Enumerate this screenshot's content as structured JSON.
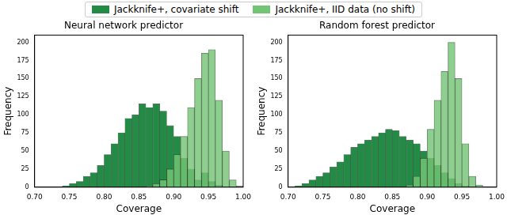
{
  "chart_data": [
    {
      "type": "histogram",
      "title": "Neural network predictor",
      "x_label": "Coverage",
      "y_label": "Frequency",
      "legend": "top",
      "grid": false,
      "bins": [
        0.7,
        0.71,
        0.72,
        0.73,
        0.74,
        0.75,
        0.76,
        0.77,
        0.78,
        0.79,
        0.8,
        0.81,
        0.82,
        0.83,
        0.84,
        0.85,
        0.86,
        0.87,
        0.88,
        0.89,
        0.9,
        0.91,
        0.92,
        0.93,
        0.94,
        0.95,
        0.96,
        0.97,
        0.98,
        0.99,
        1.0
      ],
      "series": [
        {
          "name": "Jackknife+, covariate shift",
          "color": "#238b45",
          "values": [
            0,
            0,
            0,
            0,
            2,
            5,
            8,
            15,
            20,
            30,
            45,
            60,
            75,
            95,
            100,
            115,
            110,
            115,
            105,
            85,
            70,
            40,
            25,
            10,
            20,
            8,
            3,
            1,
            0,
            0
          ]
        },
        {
          "name": "Jackknife+, IID data (no shift)",
          "color": "#74c476",
          "values": [
            0,
            0,
            0,
            0,
            0,
            0,
            0,
            0,
            0,
            0,
            0,
            0,
            0,
            0,
            0,
            0,
            2,
            5,
            10,
            25,
            45,
            70,
            110,
            150,
            185,
            190,
            120,
            50,
            10,
            2
          ]
        }
      ],
      "xlim": [
        0.7,
        1.0
      ],
      "xticks": [
        {
          "value": 0.7,
          "label": "0.70"
        },
        {
          "value": 0.75,
          "label": "0.75"
        },
        {
          "value": 0.8,
          "label": "0.80"
        },
        {
          "value": 0.85,
          "label": "0.85"
        },
        {
          "value": 0.9,
          "label": "0.90"
        },
        {
          "value": 0.95,
          "label": "0.95"
        },
        {
          "value": 1.0,
          "label": "1.00"
        }
      ],
      "ylim": [
        0,
        210
      ],
      "yticks": [
        0,
        25,
        50,
        75,
        100,
        125,
        150,
        175,
        200
      ]
    },
    {
      "type": "histogram",
      "title": "Random forest predictor",
      "x_label": "Coverage",
      "y_label": "Frequency",
      "legend": "top",
      "grid": false,
      "bins": [
        0.7,
        0.71,
        0.72,
        0.73,
        0.74,
        0.75,
        0.76,
        0.77,
        0.78,
        0.79,
        0.8,
        0.81,
        0.82,
        0.83,
        0.84,
        0.85,
        0.86,
        0.87,
        0.88,
        0.89,
        0.9,
        0.91,
        0.92,
        0.93,
        0.94,
        0.95,
        0.96,
        0.97,
        0.98,
        0.99,
        1.0
      ],
      "series": [
        {
          "name": "Jackknife+, covariate shift",
          "color": "#238b45",
          "values": [
            0,
            2,
            5,
            10,
            15,
            20,
            28,
            35,
            45,
            55,
            60,
            65,
            70,
            75,
            80,
            78,
            70,
            65,
            60,
            50,
            40,
            30,
            20,
            12,
            5,
            2,
            0,
            0,
            0,
            0
          ]
        },
        {
          "name": "Jackknife+, IID data (no shift)",
          "color": "#74c476",
          "values": [
            0,
            0,
            0,
            0,
            0,
            0,
            0,
            0,
            0,
            0,
            0,
            0,
            0,
            0,
            0,
            0,
            0,
            3,
            15,
            40,
            80,
            120,
            160,
            200,
            150,
            60,
            15,
            3,
            0,
            0
          ]
        }
      ],
      "xlim": [
        0.7,
        1.0
      ],
      "xticks": [
        {
          "value": 0.7,
          "label": "0.70"
        },
        {
          "value": 0.75,
          "label": "0.75"
        },
        {
          "value": 0.8,
          "label": "0.80"
        },
        {
          "value": 0.85,
          "label": "0.85"
        },
        {
          "value": 0.9,
          "label": "0.90"
        },
        {
          "value": 0.95,
          "label": "0.95"
        },
        {
          "value": 1.0,
          "label": "1.00"
        }
      ],
      "ylim": [
        0,
        210
      ],
      "yticks": [
        0,
        25,
        50,
        75,
        100,
        125,
        150,
        175,
        200
      ]
    }
  ]
}
